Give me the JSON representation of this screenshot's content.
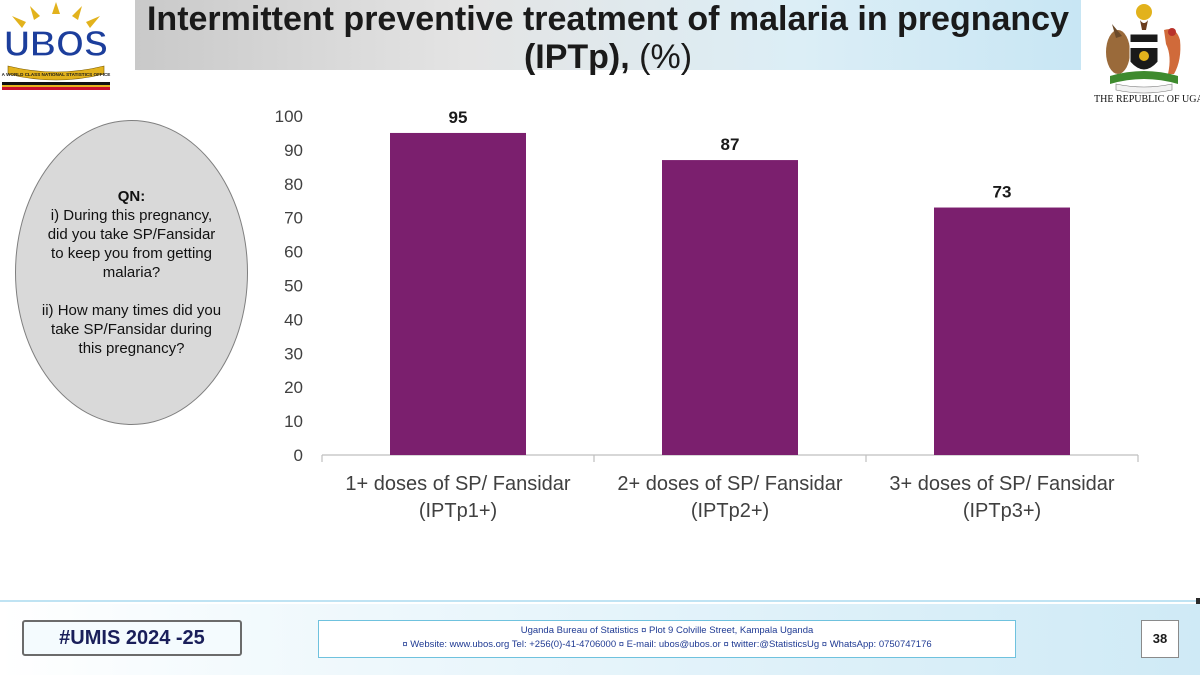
{
  "header": {
    "title_line1": "Intermittent preventive treatment of malaria in pregnancy",
    "title_line2_bold": "(IPTp), ",
    "title_line2_rest": "(%)",
    "logo_text": "UBOS",
    "logo_tagline": "A WORLD CLASS NATIONAL STATISTICS OFFICE",
    "coat_caption": "THE REPUBLIC OF UGANDA"
  },
  "question": {
    "heading": "QN:",
    "part1": "i) During this pregnancy, did you take SP/Fansidar to keep you from getting malaria?",
    "part2": "ii) How many times did you take SP/Fansidar during this pregnancy?"
  },
  "chart_data": {
    "type": "bar",
    "categories": [
      [
        "1+ doses of SP/ Fansidar",
        "(IPTp1+)"
      ],
      [
        "2+ doses of SP/ Fansidar",
        "(IPTp2+)"
      ],
      [
        "3+ doses of SP/ Fansidar",
        "(IPTp3+)"
      ]
    ],
    "values": [
      95,
      87,
      73
    ],
    "ylim": [
      0,
      100
    ],
    "yticks": [
      0,
      10,
      20,
      30,
      40,
      50,
      60,
      70,
      80,
      90,
      100
    ],
    "bar_color": "#7b1f6e",
    "grid": false,
    "legend": "none"
  },
  "footer": {
    "hashtag": "#UMIS 2024 -25",
    "address_line1": "Uganda Bureau of Statistics ¤ Plot 9 Colville Street, Kampala Uganda",
    "address_line2": "¤ Website: www.ubos.org Tel: +256(0)-41-4706000 ¤ E-mail: ubos@ubos.or ¤ twitter:@StatisticsUg ¤ WhatsApp: 0750747176",
    "page_number": "38"
  },
  "colors": {
    "bar": "#7b1f6e",
    "hashtag_text": "#1a1f5a",
    "footer_text": "#1f3a93"
  }
}
